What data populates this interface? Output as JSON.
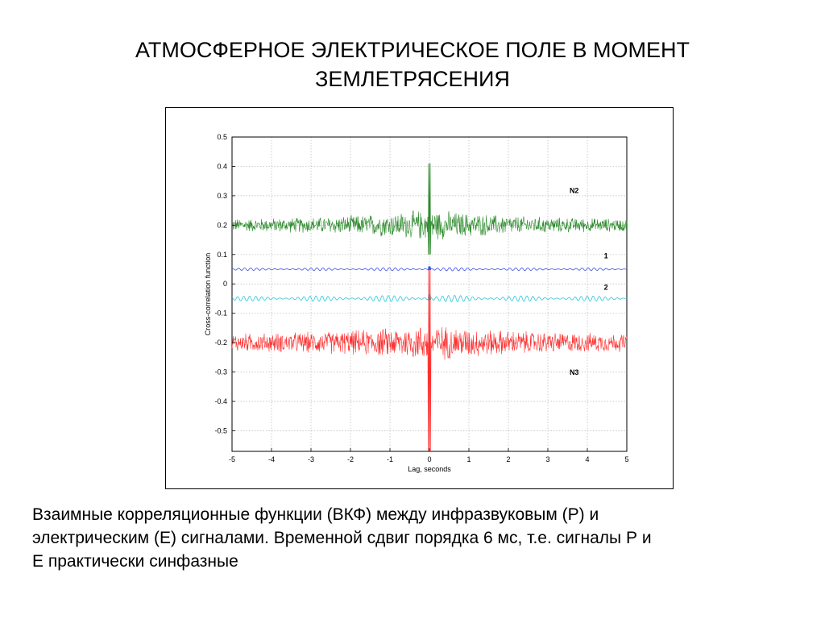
{
  "slide": {
    "title_lines": [
      "АТМОСФЕРНОЕ ЭЛЕКТРИЧЕСКОЕ ПОЛЕ В МОМЕНТ",
      "ЗЕМЛЕТРЯСЕНИЯ"
    ],
    "caption_lines": [
      "Взаимные корреляционные функции (ВКФ) между инфразвуковым (Р) и",
      "электрическим (Е) сигналами. Временной сдвиг порядка 6 мс, т.е. сигналы Р и",
      "Е практически синфазные"
    ]
  },
  "chart_data": {
    "type": "line",
    "xlabel": "Lag, seconds",
    "ylabel": "Cross-correlation function",
    "xlim": [
      -5,
      5
    ],
    "ylim": [
      -0.57,
      0.5
    ],
    "x_ticks": [
      -5,
      -4,
      -3,
      -2,
      -1,
      0,
      1,
      2,
      3,
      4,
      5
    ],
    "y_ticks": [
      0.5,
      0.4,
      0.3,
      0.2,
      0.1,
      0,
      -0.1,
      -0.2,
      -0.3,
      -0.4,
      -0.5
    ],
    "y_tick_labels": [
      "0.5",
      "0.4",
      "0.3",
      "0.2",
      "0.1",
      "0",
      "-0.1",
      "-0.2",
      "-0.3",
      "-0.4",
      "-0.5"
    ],
    "x_tick_labels": [
      "-5",
      "-4",
      "-3",
      "-2",
      "-1",
      "0",
      "1",
      "2",
      "3",
      "4",
      "5"
    ],
    "grid": true,
    "series": [
      {
        "name": "N2",
        "color": "#2e8b2e",
        "baseline": 0.2,
        "noise_amplitude": [
          0.02,
          0.06
        ],
        "peak_at_x": 0,
        "peak_range": [
          0.1,
          0.41
        ]
      },
      {
        "name": "1",
        "color": "#3b50e6",
        "baseline": 0.05,
        "noise_amplitude": [
          0.004,
          0.006
        ],
        "peak_at_x": 0,
        "peak_range": [
          0.045,
          0.06
        ]
      },
      {
        "name": "2",
        "color": "#29c5d9",
        "baseline": -0.05,
        "noise_amplitude": [
          0.008,
          0.012
        ],
        "peak_at_x": 0,
        "peak_range": [
          -0.06,
          -0.035
        ]
      },
      {
        "name": "N3",
        "color": "#ff3030",
        "baseline": -0.2,
        "noise_amplitude": [
          0.03,
          0.07
        ],
        "peak_at_x": 0,
        "peak_range": [
          -0.57,
          0.05
        ]
      }
    ]
  }
}
